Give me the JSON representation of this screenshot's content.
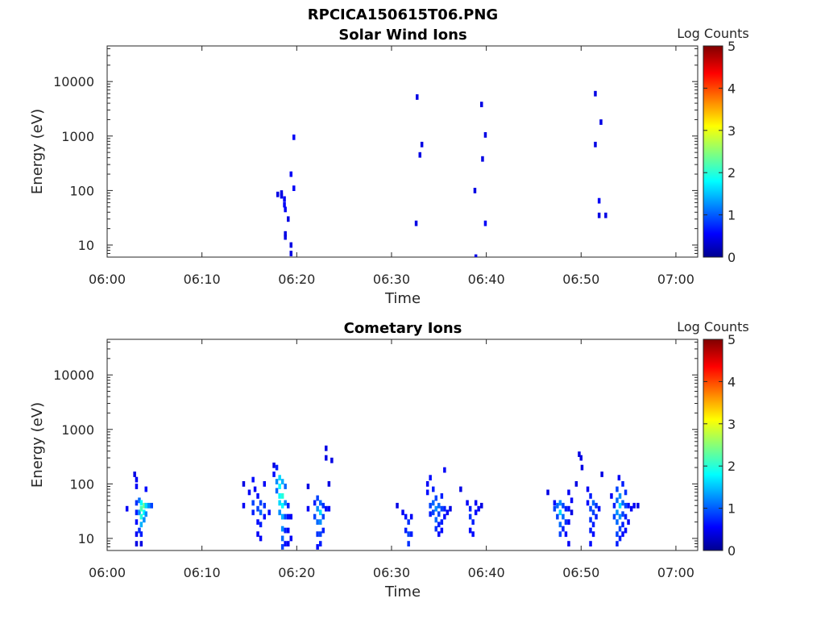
{
  "figure": {
    "title": "RPCICA150615T06.PNG"
  },
  "chart_data": [
    {
      "type": "heatmap",
      "title": "Solar Wind Ions",
      "xlabel": "Time",
      "ylabel": "Energy (eV)",
      "x_ticks": [
        "06:00",
        "06:10",
        "06:20",
        "06:30",
        "06:40",
        "06:50",
        "07:00"
      ],
      "x_range_minutes": [
        0,
        62.3
      ],
      "y_scale": "log",
      "y_ticks": [
        "10",
        "100",
        "1000",
        "10000"
      ],
      "y_range": [
        6,
        45000
      ],
      "colorbar": {
        "label": "Log Counts",
        "range": [
          0,
          5
        ],
        "ticks": [
          "0",
          "1",
          "2",
          "3",
          "4",
          "5"
        ],
        "colormap": "jet"
      },
      "cells": [
        [
          18.0,
          85,
          0.1
        ],
        [
          18.4,
          90,
          0.1
        ],
        [
          18.4,
          80,
          0.1
        ],
        [
          18.7,
          70,
          0.2
        ],
        [
          18.7,
          55,
          0.2
        ],
        [
          18.8,
          45,
          0.2
        ],
        [
          19.1,
          30,
          0.1
        ],
        [
          18.8,
          16,
          0.1
        ],
        [
          18.8,
          14,
          0.1
        ],
        [
          19.4,
          10,
          0.1
        ],
        [
          19.4,
          7,
          0.1
        ],
        [
          19.4,
          200,
          0.2
        ],
        [
          19.7,
          110,
          0.2
        ],
        [
          19.7,
          950,
          0.2
        ],
        [
          32.7,
          5200,
          0.1
        ],
        [
          33.2,
          700,
          0.1
        ],
        [
          33.0,
          450,
          0.1
        ],
        [
          32.6,
          25,
          0.1
        ],
        [
          39.5,
          3800,
          0.1
        ],
        [
          39.9,
          1050,
          0.1
        ],
        [
          39.6,
          380,
          0.1
        ],
        [
          38.8,
          100,
          0.1
        ],
        [
          39.9,
          25,
          0.2
        ],
        [
          38.9,
          6,
          0.1
        ],
        [
          51.5,
          6000,
          0.1
        ],
        [
          52.1,
          1800,
          0.1
        ],
        [
          51.5,
          700,
          0.1
        ],
        [
          51.9,
          65,
          0.2
        ],
        [
          51.9,
          35,
          0.1
        ],
        [
          52.6,
          35,
          0.1
        ]
      ]
    },
    {
      "type": "heatmap",
      "title": "Cometary Ions",
      "xlabel": "Time",
      "ylabel": "Energy (eV)",
      "x_ticks": [
        "06:00",
        "06:10",
        "06:20",
        "06:30",
        "06:40",
        "06:50",
        "07:00"
      ],
      "x_range_minutes": [
        0,
        62.3
      ],
      "y_scale": "log",
      "y_ticks": [
        "10",
        "100",
        "1000",
        "10000"
      ],
      "y_range": [
        6,
        45000
      ],
      "colorbar": {
        "label": "Log Counts",
        "range": [
          0,
          5
        ],
        "ticks": [
          "0",
          "1",
          "2",
          "3",
          "4",
          "5"
        ],
        "colormap": "jet"
      },
      "cells": [
        [
          2.1,
          35,
          0.2
        ],
        [
          2.9,
          150,
          0.1
        ],
        [
          3.1,
          120,
          0.2
        ],
        [
          3.1,
          90,
          0.2
        ],
        [
          3.1,
          45,
          0.5
        ],
        [
          3.1,
          30,
          0.4
        ],
        [
          3.1,
          20,
          0.3
        ],
        [
          3.1,
          12,
          0.2
        ],
        [
          3.1,
          8,
          0.1
        ],
        [
          3.4,
          50,
          0.8
        ],
        [
          3.4,
          30,
          1.0
        ],
        [
          3.4,
          14,
          0.5
        ],
        [
          3.6,
          45,
          1.6
        ],
        [
          3.6,
          35,
          2.0
        ],
        [
          3.6,
          25,
          1.8
        ],
        [
          3.6,
          18,
          1.2
        ],
        [
          3.6,
          12,
          0.4
        ],
        [
          3.6,
          8,
          0.1
        ],
        [
          3.9,
          40,
          2.2
        ],
        [
          3.9,
          30,
          1.6
        ],
        [
          3.9,
          22,
          1.0
        ],
        [
          4.1,
          80,
          0.3
        ],
        [
          4.1,
          40,
          1.4
        ],
        [
          4.1,
          28,
          1.0
        ],
        [
          4.4,
          40,
          1.0
        ],
        [
          4.7,
          40,
          0.6
        ],
        [
          14.4,
          100,
          0.1
        ],
        [
          14.4,
          40,
          0.2
        ],
        [
          15.0,
          70,
          0.2
        ],
        [
          15.4,
          120,
          0.3
        ],
        [
          15.4,
          45,
          0.6
        ],
        [
          15.4,
          30,
          0.4
        ],
        [
          15.6,
          80,
          0.2
        ],
        [
          15.9,
          60,
          0.3
        ],
        [
          15.9,
          35,
          0.6
        ],
        [
          15.9,
          20,
          0.3
        ],
        [
          15.9,
          12,
          0.2
        ],
        [
          16.2,
          45,
          0.6
        ],
        [
          16.2,
          30,
          0.8
        ],
        [
          16.2,
          18,
          0.4
        ],
        [
          16.2,
          10,
          0.2
        ],
        [
          16.6,
          100,
          0.2
        ],
        [
          16.6,
          40,
          0.5
        ],
        [
          16.6,
          25,
          0.3
        ],
        [
          17.1,
          30,
          0.3
        ],
        [
          17.6,
          220,
          0.1
        ],
        [
          17.6,
          150,
          0.3
        ],
        [
          17.9,
          200,
          0.4
        ],
        [
          17.9,
          110,
          1.0
        ],
        [
          17.9,
          75,
          0.8
        ],
        [
          18.2,
          130,
          1.4
        ],
        [
          18.2,
          90,
          1.6
        ],
        [
          18.2,
          60,
          1.6
        ],
        [
          18.2,
          45,
          1.4
        ],
        [
          18.2,
          30,
          1.0
        ],
        [
          18.5,
          110,
          1.2
        ],
        [
          18.5,
          60,
          1.8
        ],
        [
          18.5,
          40,
          1.6
        ],
        [
          18.5,
          25,
          1.2
        ],
        [
          18.5,
          15,
          1.0
        ],
        [
          18.5,
          10,
          0.8
        ],
        [
          18.5,
          7,
          0.6
        ],
        [
          18.8,
          90,
          0.8
        ],
        [
          18.8,
          45,
          1.0
        ],
        [
          18.8,
          25,
          0.6
        ],
        [
          18.8,
          14,
          0.4
        ],
        [
          18.8,
          8,
          0.3
        ],
        [
          19.1,
          40,
          0.4
        ],
        [
          19.1,
          25,
          0.3
        ],
        [
          19.1,
          14,
          0.2
        ],
        [
          19.1,
          8,
          0.2
        ],
        [
          19.4,
          25,
          0.2
        ],
        [
          19.4,
          10,
          0.2
        ],
        [
          21.2,
          90,
          0.1
        ],
        [
          21.2,
          35,
          0.2
        ],
        [
          21.9,
          45,
          0.4
        ],
        [
          21.9,
          25,
          0.6
        ],
        [
          22.2,
          55,
          0.6
        ],
        [
          22.2,
          35,
          1.0
        ],
        [
          22.2,
          20,
          0.8
        ],
        [
          22.2,
          12,
          0.5
        ],
        [
          22.2,
          7,
          0.3
        ],
        [
          22.5,
          45,
          0.8
        ],
        [
          22.5,
          30,
          1.4
        ],
        [
          22.5,
          20,
          1.0
        ],
        [
          22.5,
          12,
          0.6
        ],
        [
          22.5,
          8,
          0.4
        ],
        [
          22.8,
          40,
          0.5
        ],
        [
          22.8,
          25,
          0.6
        ],
        [
          22.8,
          14,
          0.4
        ],
        [
          23.1,
          35,
          0.3
        ],
        [
          23.4,
          35,
          0.2
        ],
        [
          23.1,
          450,
          0.1
        ],
        [
          23.1,
          300,
          0.1
        ],
        [
          23.7,
          270,
          0.1
        ],
        [
          23.4,
          100,
          0.1
        ],
        [
          30.6,
          40,
          0.1
        ],
        [
          31.2,
          30,
          0.2
        ],
        [
          31.5,
          25,
          0.3
        ],
        [
          31.5,
          14,
          0.4
        ],
        [
          31.8,
          20,
          0.5
        ],
        [
          31.8,
          12,
          0.6
        ],
        [
          31.8,
          8,
          0.5
        ],
        [
          32.1,
          12,
          0.4
        ],
        [
          32.1,
          25,
          0.2
        ],
        [
          33.8,
          100,
          0.2
        ],
        [
          33.8,
          70,
          0.3
        ],
        [
          34.1,
          130,
          0.3
        ],
        [
          34.1,
          40,
          0.6
        ],
        [
          34.1,
          28,
          0.4
        ],
        [
          34.4,
          80,
          0.4
        ],
        [
          34.4,
          45,
          0.8
        ],
        [
          34.4,
          30,
          0.6
        ],
        [
          34.7,
          55,
          0.6
        ],
        [
          34.7,
          35,
          1.0
        ],
        [
          34.7,
          22,
          0.8
        ],
        [
          34.7,
          15,
          0.5
        ],
        [
          35.0,
          40,
          0.8
        ],
        [
          35.0,
          28,
          0.6
        ],
        [
          35.0,
          18,
          0.4
        ],
        [
          35.0,
          12,
          0.3
        ],
        [
          35.3,
          60,
          0.4
        ],
        [
          35.3,
          35,
          0.6
        ],
        [
          35.3,
          20,
          0.4
        ],
        [
          35.3,
          14,
          0.3
        ],
        [
          35.6,
          35,
          0.4
        ],
        [
          35.6,
          25,
          0.3
        ],
        [
          35.6,
          180,
          0.2
        ],
        [
          35.9,
          30,
          0.2
        ],
        [
          36.2,
          35,
          0.1
        ],
        [
          37.3,
          80,
          0.1
        ],
        [
          38.0,
          45,
          0.2
        ],
        [
          38.3,
          35,
          0.4
        ],
        [
          38.3,
          25,
          0.5
        ],
        [
          38.3,
          14,
          0.3
        ],
        [
          38.6,
          20,
          0.4
        ],
        [
          38.6,
          12,
          0.3
        ],
        [
          38.9,
          45,
          0.2
        ],
        [
          38.9,
          30,
          0.3
        ],
        [
          39.2,
          35,
          0.2
        ],
        [
          39.5,
          40,
          0.1
        ],
        [
          46.5,
          70,
          0.1
        ],
        [
          47.2,
          45,
          0.3
        ],
        [
          47.2,
          35,
          0.6
        ],
        [
          47.5,
          40,
          0.8
        ],
        [
          47.5,
          25,
          0.6
        ],
        [
          47.8,
          45,
          1.0
        ],
        [
          47.8,
          30,
          1.4
        ],
        [
          47.8,
          18,
          0.8
        ],
        [
          47.8,
          12,
          0.6
        ],
        [
          48.1,
          40,
          0.6
        ],
        [
          48.1,
          25,
          0.8
        ],
        [
          48.1,
          15,
          0.4
        ],
        [
          48.4,
          35,
          0.4
        ],
        [
          48.4,
          20,
          0.5
        ],
        [
          48.4,
          12,
          0.3
        ],
        [
          48.7,
          35,
          0.3
        ],
        [
          48.7,
          20,
          0.2
        ],
        [
          48.7,
          8,
          0.2
        ],
        [
          48.7,
          70,
          0.2
        ],
        [
          49.0,
          50,
          0.2
        ],
        [
          49.0,
          30,
          0.1
        ],
        [
          49.5,
          100,
          0.1
        ],
        [
          49.8,
          350,
          0.1
        ],
        [
          50.0,
          300,
          0.1
        ],
        [
          50.1,
          200,
          0.1
        ],
        [
          50.7,
          80,
          0.2
        ],
        [
          50.7,
          45,
          0.3
        ],
        [
          51.0,
          60,
          0.4
        ],
        [
          51.0,
          35,
          0.6
        ],
        [
          51.0,
          22,
          0.5
        ],
        [
          51.0,
          14,
          0.4
        ],
        [
          51.0,
          8,
          0.3
        ],
        [
          51.3,
          45,
          0.8
        ],
        [
          51.3,
          30,
          0.6
        ],
        [
          51.3,
          18,
          0.4
        ],
        [
          51.3,
          12,
          0.3
        ],
        [
          51.6,
          40,
          0.5
        ],
        [
          51.6,
          25,
          0.4
        ],
        [
          51.9,
          35,
          0.3
        ],
        [
          52.2,
          150,
          0.1
        ],
        [
          53.2,
          60,
          0.2
        ],
        [
          53.5,
          40,
          0.4
        ],
        [
          53.5,
          25,
          0.6
        ],
        [
          53.8,
          80,
          0.6
        ],
        [
          53.8,
          50,
          0.8
        ],
        [
          53.8,
          30,
          1.0
        ],
        [
          53.8,
          20,
          0.8
        ],
        [
          53.8,
          12,
          0.6
        ],
        [
          53.8,
          8,
          0.4
        ],
        [
          54.1,
          60,
          1.0
        ],
        [
          54.1,
          40,
          1.4
        ],
        [
          54.1,
          25,
          1.0
        ],
        [
          54.1,
          15,
          0.6
        ],
        [
          54.1,
          10,
          0.4
        ],
        [
          54.4,
          100,
          0.4
        ],
        [
          54.4,
          45,
          0.8
        ],
        [
          54.4,
          28,
          0.6
        ],
        [
          54.4,
          18,
          0.4
        ],
        [
          54.4,
          12,
          0.3
        ],
        [
          54.7,
          70,
          0.5
        ],
        [
          54.7,
          40,
          0.6
        ],
        [
          54.7,
          25,
          0.4
        ],
        [
          54.7,
          14,
          0.3
        ],
        [
          55.0,
          40,
          0.3
        ],
        [
          55.0,
          20,
          0.2
        ],
        [
          55.3,
          35,
          0.2
        ],
        [
          55.6,
          40,
          0.2
        ],
        [
          56.0,
          40,
          0.1
        ],
        [
          54.0,
          130,
          0.2
        ]
      ]
    }
  ]
}
